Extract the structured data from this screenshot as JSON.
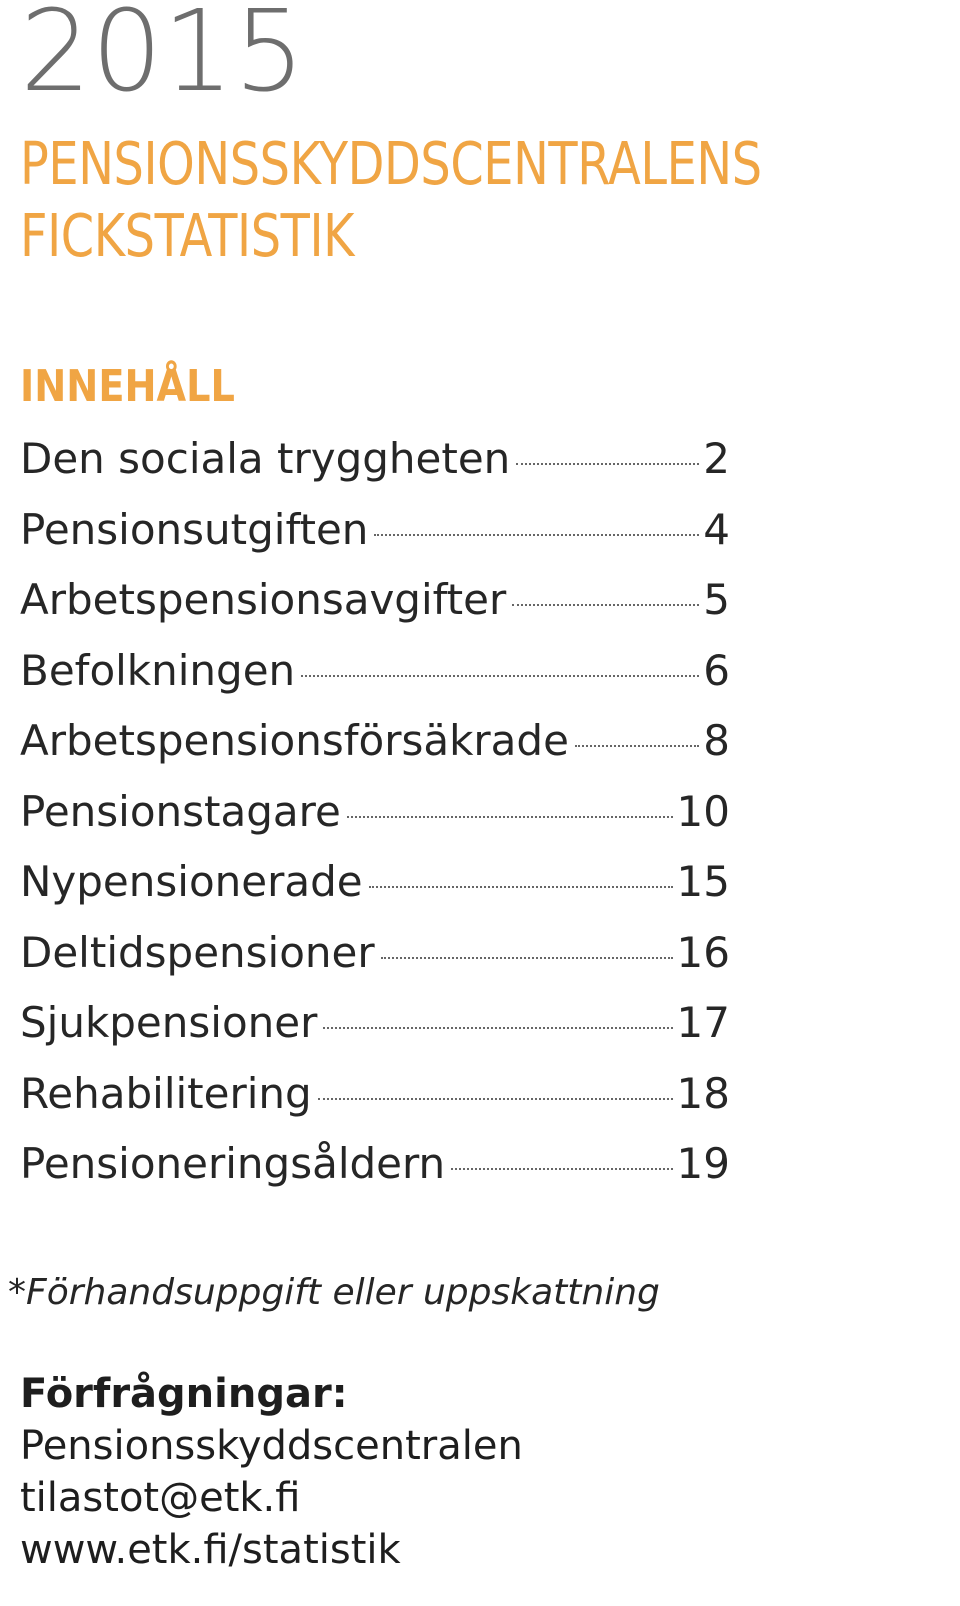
{
  "header": {
    "year": "2015",
    "title_line1": "PENSIONSSKYDDSCENTRALENS",
    "title_line2": "FICKSTATISTIK"
  },
  "contents": {
    "heading": "INNEHÅLL",
    "items": [
      {
        "label": "Den sociala tryggheten",
        "page": "2"
      },
      {
        "label": "Pensionsutgiften",
        "page": "4"
      },
      {
        "label": "Arbetspensionsavgifter",
        "page": "5"
      },
      {
        "label": "Befolkningen",
        "page": "6"
      },
      {
        "label": "Arbetspensionsförsäkrade",
        "page": "8"
      },
      {
        "label": "Pensionstagare",
        "page": "10"
      },
      {
        "label": "Nypensionerade",
        "page": "15"
      },
      {
        "label": "Deltidspensioner",
        "page": "16"
      },
      {
        "label": "Sjukpensioner",
        "page": "17"
      },
      {
        "label": "Rehabilitering",
        "page": "18"
      },
      {
        "label": "Pensioneringsåldern",
        "page": "19"
      }
    ]
  },
  "footnote": "*Förhandsuppgift eller uppskattning",
  "contact": {
    "label": "Förfrågningar:",
    "organization": "Pensionsskyddscentralen",
    "email": "tilastot@etk.fi",
    "website": "www.etk.fi/statistik"
  },
  "colors": {
    "accent": "#f0a544",
    "year": "#6e6e6e",
    "text": "#262626"
  }
}
